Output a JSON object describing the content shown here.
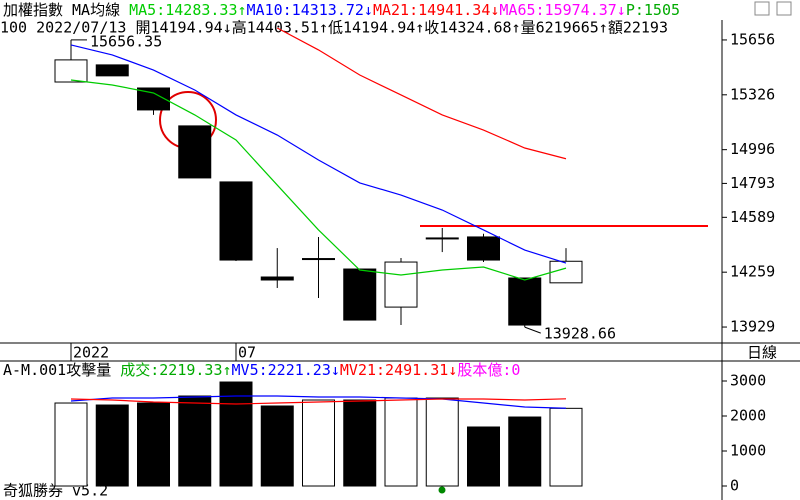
{
  "chart_data": [
    {
      "type": "candlestick",
      "title": "加權指數 MA均線",
      "info": "100 2022/07/13 開14194.94↓高14403.51↑低14194.94↑收14324.68↑量6219665↑額22193",
      "categories": [
        "2022",
        null,
        null,
        null,
        "07",
        null,
        null,
        null,
        null,
        null,
        null,
        null,
        null
      ],
      "open": [
        15403,
        15506,
        15367,
        15139,
        14802,
        14230,
        14338,
        14278,
        14049,
        14460,
        14471,
        14224,
        14194.94
      ],
      "high": [
        15656.35,
        15506,
        15367,
        15139,
        14802,
        14404,
        14471,
        14278,
        14344,
        14525,
        14490,
        14224,
        14403.51
      ],
      "low": [
        15403,
        15440,
        15205,
        14826,
        14326,
        14164,
        14104,
        13971,
        13941,
        14380,
        14320,
        13928.66,
        14194.94
      ],
      "close": [
        15536,
        15440,
        15235,
        14826,
        14332,
        14212,
        14341,
        13971,
        14320,
        14465,
        14332,
        13941,
        14324.68
      ],
      "up_color": "#ffffff",
      "down_color": "#000000",
      "series": [
        {
          "name": "MA5:14283.33↑",
          "color": "#00cc00",
          "values": [
            15415,
            15385,
            15337,
            15205,
            15054,
            14783,
            14513,
            14272,
            14242,
            14272,
            14290,
            14212,
            14283.33
          ]
        },
        {
          "name": "MA10:14313.72↓",
          "color": "#0000ff",
          "values": [
            15626,
            15566,
            15475,
            15355,
            15205,
            15084,
            14934,
            14796,
            14723,
            14633,
            14513,
            14392,
            14313.72
          ]
        },
        {
          "name": "MA21:14941.34↓",
          "color": "#ff0000",
          "values": [
            null,
            null,
            null,
            null,
            null,
            15728,
            15596,
            15445,
            15325,
            15205,
            15114,
            15006,
            14941.34
          ]
        }
      ],
      "extra_legend": [
        {
          "name": "MA65:15974.37↓",
          "color": "#ff00ff"
        },
        {
          "name": "P:1505",
          "color": "#00aa00"
        }
      ],
      "hline": {
        "value": 14537,
        "color": "#ff0000"
      },
      "ylim": [
        13833,
        15776
      ],
      "yticks": [
        15656,
        15326,
        14996,
        14793,
        14589,
        14259,
        13929
      ],
      "period": "日線"
    },
    {
      "type": "bar",
      "title": "A-M.001攻擊量",
      "series": [
        {
          "name": "成交:2219.33↑",
          "color": "#00aa00",
          "values": [
            2371,
            2314,
            2371,
            2571,
            2971,
            2286,
            2457,
            2457,
            2514,
            2514,
            1686,
            1971,
            2219.33
          ],
          "colors": [
            "#ffffff",
            "#000000",
            "#000000",
            "#000000",
            "#000000",
            "#000000",
            "#ffffff",
            "#000000",
            "#ffffff",
            "#ffffff",
            "#000000",
            "#000000",
            "#ffffff"
          ]
        },
        {
          "name": "MV5:2221.23↓",
          "color": "#0000ff",
          "values": [
            2429,
            2514,
            2514,
            2543,
            2571,
            2571,
            2543,
            2543,
            2514,
            2486,
            2371,
            2257,
            2221.23
          ]
        },
        {
          "name": "MV21:2491.31↓",
          "color": "#ff0000",
          "values": [
            2486,
            2457,
            2400,
            2371,
            2343,
            2371,
            2400,
            2429,
            2457,
            2486,
            2486,
            2457,
            2491.31
          ]
        }
      ],
      "extra_legend": [
        {
          "name": "股本億:0",
          "color": "#ff00ff"
        }
      ],
      "ylim": [
        -314,
        3543
      ],
      "yticks": [
        0,
        1000,
        2000,
        3000
      ]
    }
  ],
  "footer": "奇狐勝券 v5.2"
}
